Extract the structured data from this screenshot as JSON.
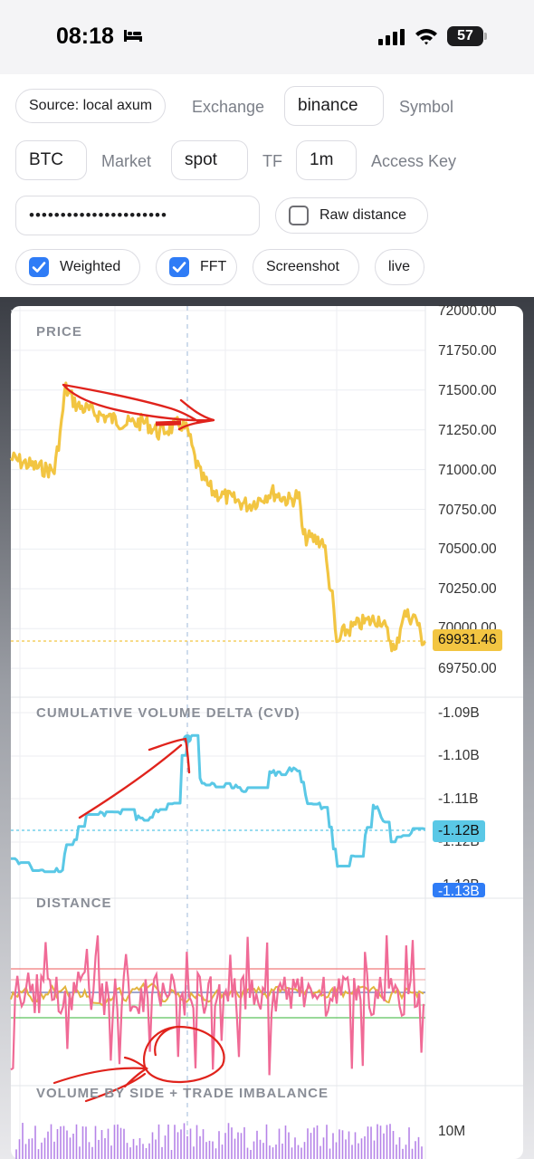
{
  "status_bar": {
    "time": "08:18",
    "battery": "57"
  },
  "controls": {
    "source_button": "Source: local axum",
    "exchange_label": "Exchange",
    "exchange_value": "binance",
    "symbol_label": "Symbol",
    "symbol_value": "BTC",
    "market_label": "Market",
    "market_value": "spot",
    "tf_label": "TF",
    "tf_value": "1m",
    "access_key_label": "Access Key",
    "access_key_value": "••••••••••••••••••••••",
    "raw_distance": {
      "label": "Raw distance",
      "checked": false
    },
    "weighted": {
      "label": "Weighted",
      "checked": true
    },
    "fft": {
      "label": "FFT",
      "checked": true
    },
    "screenshot_button": "Screenshot",
    "live_button": "live"
  },
  "chart": {
    "colors": {
      "price": "#f2c542",
      "cvd": "#5ac8e6",
      "distance_a": "#f06a96",
      "distance_b": "#e2b43e",
      "volume": "#b683e8",
      "annotation": "#e0231c"
    },
    "price_pane": {
      "title": "PRICE",
      "axis_labels": [
        "72000.00",
        "71750.00",
        "71500.00",
        "71250.00",
        "71000.00",
        "70750.00",
        "70500.00",
        "70250.00",
        "70000.00",
        "69750.00"
      ],
      "last_value": "69931.46"
    },
    "cvd_pane": {
      "title": "CUMULATIVE VOLUME DELTA (CVD)",
      "axis_labels": [
        "-1.09B",
        "-1.10B",
        "-1.11B",
        "-1.12B",
        "-1.13B"
      ],
      "last_value": "-1.12B",
      "lower_tag": "-1.13B"
    },
    "distance_pane": {
      "title": "DISTANCE"
    },
    "volume_pane": {
      "title": "VOLUME BY SIDE + TRADE IMBALANCE",
      "axis_label": "10M"
    }
  }
}
